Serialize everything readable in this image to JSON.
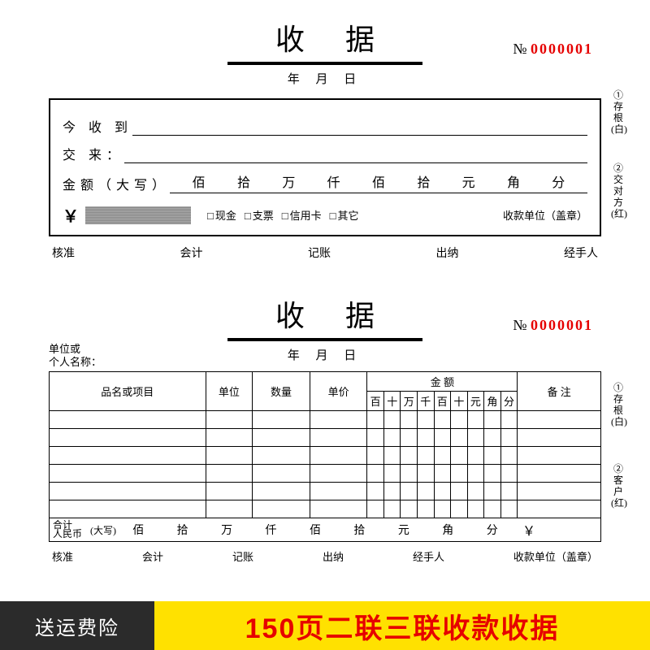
{
  "colors": {
    "accent_red": "#e60000",
    "banner_yellow": "#ffe100",
    "banner_dark": "#2b2b2b",
    "line": "#000000"
  },
  "receipt1": {
    "title": "收据",
    "serial_prefix": "№",
    "serial_number": "0000001",
    "date_labels": {
      "year": "年",
      "month": "月",
      "day": "日"
    },
    "received_label": "今 收 到",
    "from_label": "交 来：",
    "amount_label": "金额（大写）",
    "amount_units": [
      "佰",
      "拾",
      "万",
      "仟",
      "佰",
      "拾",
      "元",
      "角",
      "分"
    ],
    "currency_symbol": "￥",
    "payment_methods": [
      "现金",
      "支票",
      "信用卡",
      "其它"
    ],
    "stamp_label": "收款单位（盖章）",
    "signatures": [
      "核准",
      "会计",
      "记账",
      "出纳",
      "经手人"
    ],
    "side_notes": [
      "①存根(白)",
      "②交对方(红)"
    ]
  },
  "receipt2": {
    "title": "收据",
    "serial_prefix": "№",
    "serial_number": "0000001",
    "unit_label_line1": "单位或",
    "unit_label_line2": "个人名称：",
    "date_labels": {
      "year": "年",
      "month": "月",
      "day": "日"
    },
    "table": {
      "col_item": "品名或项目",
      "col_unit": "单位",
      "col_qty": "数量",
      "col_price": "单价",
      "col_amount": "金 额",
      "col_remark": "备 注",
      "amount_sub": [
        "百",
        "十",
        "万",
        "千",
        "百",
        "十",
        "元",
        "角",
        "分"
      ],
      "body_rows": 6,
      "sum_label_line1": "合计",
      "sum_label_line2": "人民币",
      "sum_label_suffix": "(大写)",
      "sum_units": [
        "佰",
        "拾",
        "万",
        "仟",
        "佰",
        "拾",
        "元",
        "角",
        "分"
      ],
      "sum_currency": "￥"
    },
    "signatures": [
      "核准",
      "会计",
      "记账",
      "出纳",
      "经手人",
      "收款单位（盖章）"
    ],
    "side_notes": [
      "①存根(白)",
      "②客户(红)"
    ]
  },
  "banner": {
    "left": "送运费险",
    "right": "150页二联三联收款收据"
  }
}
